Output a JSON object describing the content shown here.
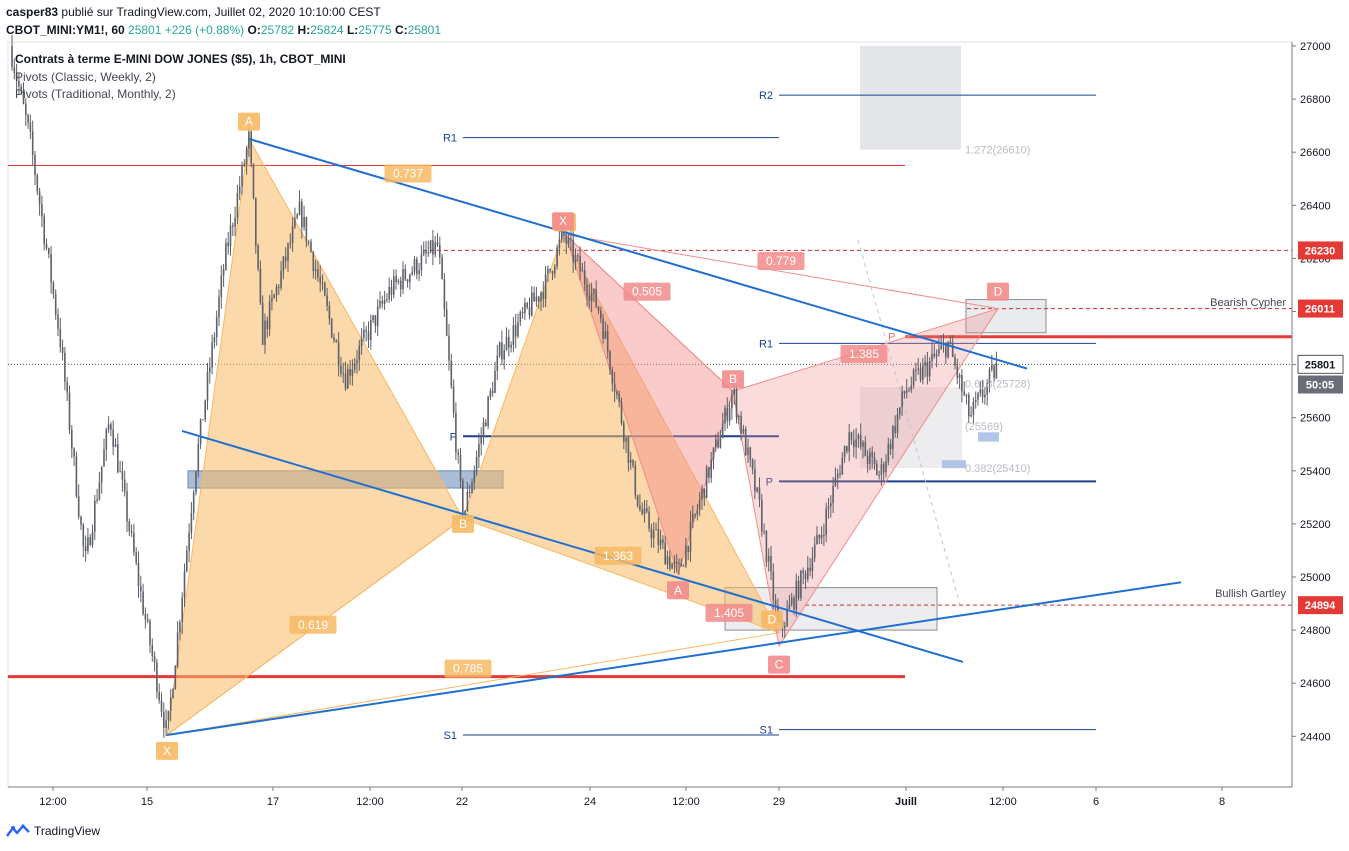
{
  "header": {
    "author": "casper83",
    "published_text": "publié sur TradingView.com, Juillet 02, 2020 10:10:00 CEST"
  },
  "symbol_bar": {
    "symbol": "CBOT_MINI:YM1!, 60",
    "last": "25801",
    "change": "+226 (+0.88%)",
    "o_label": "O:",
    "o": "25782",
    "h_label": "H:",
    "h": "25824",
    "l_label": "L:",
    "l": "25775",
    "c_label": "C:",
    "c": "25801"
  },
  "legend": {
    "title": "Contrats à terme E-MINI DOW JONES ($5), 1h, CBOT_MINI",
    "ind1": "Pivots (Classic, Weekly, 2)",
    "ind2": "Pivots (Traditional, Monthly, 2)"
  },
  "footer": {
    "brand": "TradingView"
  },
  "colors": {
    "up": "#26a69a",
    "orange_pattern": "#f7b964",
    "pink_pattern": "#f28b8b",
    "trendline": "#1e6fcf",
    "pivot": "#1a3f8f",
    "red_level": "#e53935"
  },
  "chart_data": {
    "type": "candlestick",
    "interval": "1h",
    "price_axis": {
      "ticks": [
        27000,
        26800,
        26600,
        26400,
        26200,
        26000,
        25800,
        25600,
        25400,
        25200,
        25000,
        24800,
        24600,
        24400
      ],
      "ylim": [
        24300,
        27000
      ]
    },
    "time_axis": {
      "ticks": [
        "12:00",
        "15",
        "17",
        "12:00",
        "22",
        "24",
        "12:00",
        "29",
        "Juill",
        "12:00",
        "6",
        "8"
      ]
    },
    "price_labels": [
      {
        "text": "26230",
        "price": 26230,
        "style": "red"
      },
      {
        "text": "26011",
        "price": 26011,
        "style": "red"
      },
      {
        "text": "25801",
        "price": 25801,
        "style": "last"
      },
      {
        "text": "50:05",
        "price": 25725,
        "style": "timer"
      },
      {
        "text": "24894",
        "price": 24894,
        "style": "red"
      }
    ],
    "horizontal_levels": [
      {
        "price": 26550,
        "style": "thin-red"
      },
      {
        "price": 24625,
        "style": "thick-red"
      },
      {
        "price": 25905,
        "style": "thick-red"
      },
      {
        "price": 26230,
        "style": "dashed-red"
      },
      {
        "price": 26011,
        "style": "dashed-red"
      },
      {
        "price": 24894,
        "style": "dashed-red"
      },
      {
        "price": 25801,
        "style": "dotted-grey"
      }
    ],
    "pivot_levels": [
      {
        "label": "R2",
        "price": 26815
      },
      {
        "label": "R1",
        "price": 26655
      },
      {
        "label": "R1",
        "price": 25880
      },
      {
        "label": "P",
        "price": 25530
      },
      {
        "label": "P",
        "price": 25360
      },
      {
        "label": "S1",
        "price": 24405
      },
      {
        "label": "S1",
        "price": 24425
      }
    ],
    "patterns": [
      {
        "name": "Bullish Gartley",
        "points": [
          "X",
          "A",
          "B",
          "C",
          "D"
        ],
        "ratios": [
          "0.619",
          "0.737",
          "1.363",
          "0.785"
        ]
      },
      {
        "name": "Bearish Cypher",
        "points": [
          "X",
          "A",
          "B",
          "C",
          "D"
        ],
        "ratios": [
          "0.505",
          "0.779",
          "1.405",
          "1.385"
        ]
      }
    ],
    "fib_levels": [
      "1.272(26610)",
      "0.618(25728)",
      "(25569)",
      "0.382(25410)"
    ],
    "pivot_marker": "P"
  }
}
